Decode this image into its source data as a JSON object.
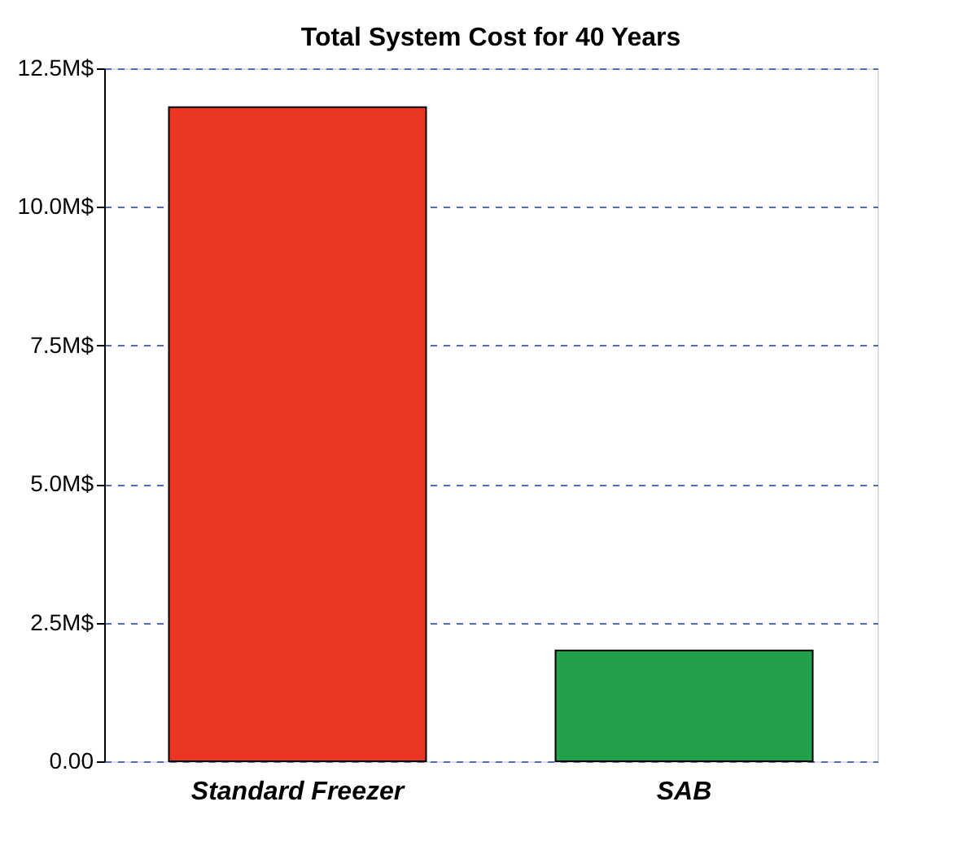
{
  "chart_data": {
    "type": "bar",
    "title": "Total System Cost for 40 Years",
    "categories": [
      "Standard Freezer",
      "SAB"
    ],
    "values": [
      11.8,
      2.0
    ],
    "colors": [
      "#ec3624",
      "#22a04b"
    ],
    "ylim": [
      0,
      12.5
    ],
    "yticks": [
      {
        "value": 0,
        "label": "0.00"
      },
      {
        "value": 2.5,
        "label": "2.5M$"
      },
      {
        "value": 5,
        "label": "5.0M$"
      },
      {
        "value": 7.5,
        "label": "7.5M$"
      },
      {
        "value": 10,
        "label": "10.0M$"
      },
      {
        "value": 12.5,
        "label": "12.5M$"
      }
    ],
    "grid": "y",
    "line_style": "dashed",
    "legend": false
  }
}
